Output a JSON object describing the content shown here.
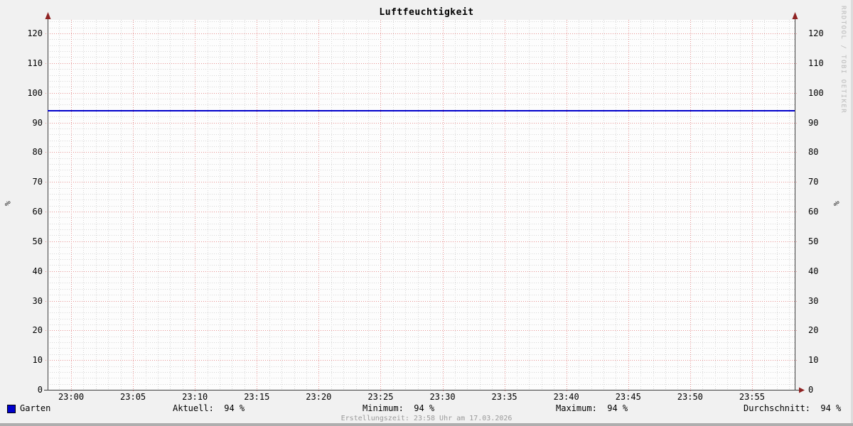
{
  "title": "Luftfeuchtigkeit",
  "watermark": "RRDTOOL / TOBI OETIKER",
  "footer": "Erstellungszeit: 23:58 Uhr am 17.03.2026",
  "axis": {
    "unit_label_left": "%",
    "unit_label_right": "%"
  },
  "legend": {
    "series": {
      "label": "Garten",
      "color": "#0000cc"
    },
    "stats": [
      {
        "name": "aktuell",
        "text": "Aktuell:  94 %"
      },
      {
        "name": "minimum",
        "text": "Minimum:  94 %"
      },
      {
        "name": "maximum",
        "text": "Maximum:  94 %"
      },
      {
        "name": "durchschnitt",
        "text": "Durchschnitt:  94 %"
      }
    ]
  },
  "chart_data": {
    "type": "line",
    "title": "Luftfeuchtigkeit",
    "xlabel": "",
    "ylabel": "%",
    "ylim": [
      0,
      124.5
    ],
    "y_ticks": [
      0,
      10,
      20,
      30,
      40,
      50,
      60,
      70,
      80,
      90,
      100,
      110,
      120
    ],
    "y_minor_step": 2,
    "x_ticks": [
      "23:00",
      "23:05",
      "23:10",
      "23:15",
      "23:20",
      "23:25",
      "23:30",
      "23:35",
      "23:40",
      "23:45",
      "23:50",
      "23:55"
    ],
    "x_minor_step_minutes": 1,
    "x_range": [
      "22:58",
      "23:58"
    ],
    "grid": true,
    "legend_position": "bottom",
    "series": [
      {
        "name": "Garten",
        "color": "#0000cc",
        "unit": "%",
        "points": [
          {
            "x": "22:58",
            "y": 94
          },
          {
            "x": "23:58",
            "y": 94
          }
        ],
        "stats": {
          "aktuell": 94,
          "minimum": 94,
          "maximum": 94,
          "durchschnitt": 94
        }
      }
    ]
  }
}
